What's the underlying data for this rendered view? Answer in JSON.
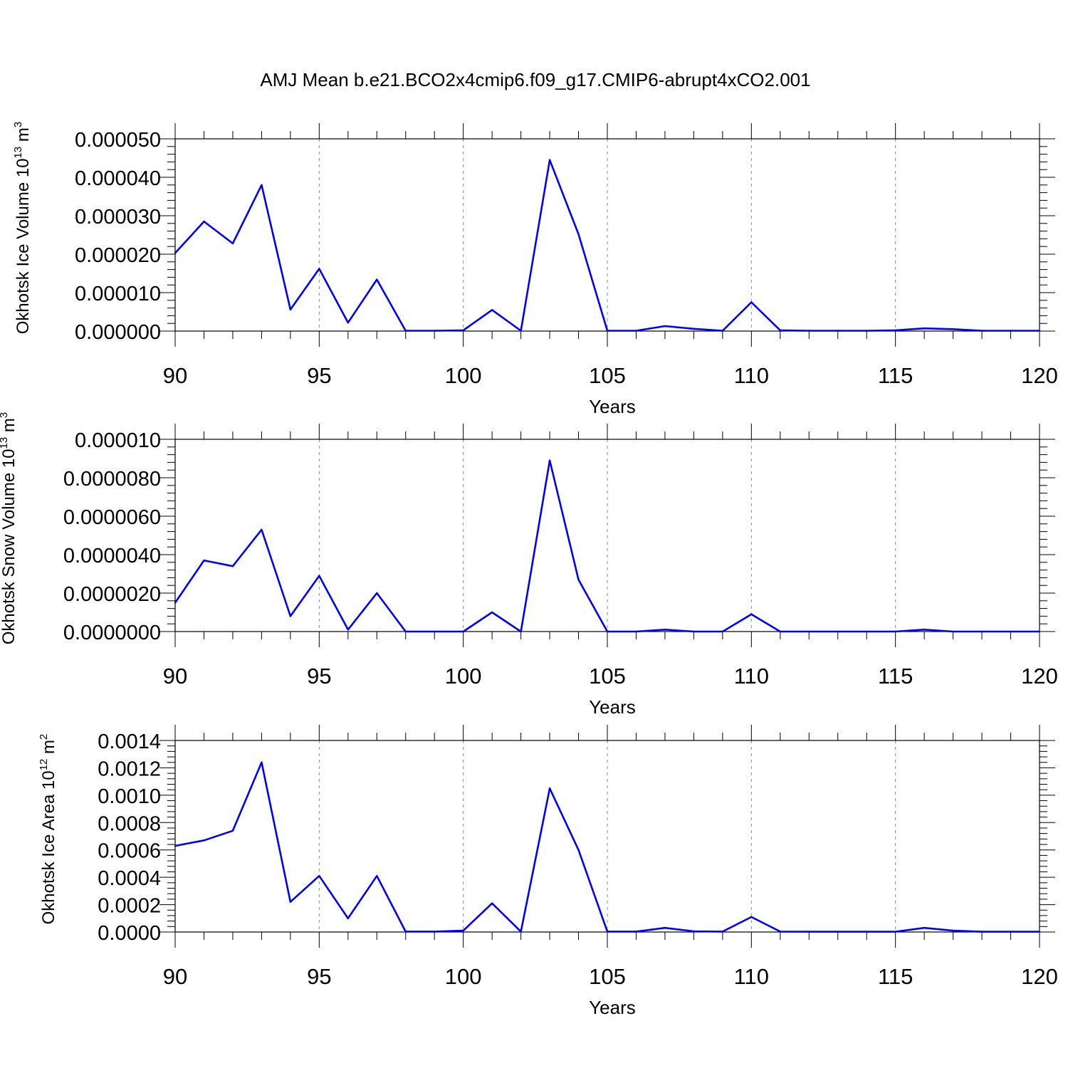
{
  "title": "AMJ Mean b.e21.BCO2x4cmip6.f09_g17.CMIP6-abrupt4xCO2.001",
  "line_color": "#0000ff",
  "chart_data": [
    {
      "type": "line",
      "xlabel": "Years",
      "ylabel": {
        "text": "Okhotsk Ice Volume 10",
        "exponent": "13",
        "unit": " m",
        "unit_exponent": "3"
      },
      "xlim": [
        90,
        120
      ],
      "ylim": [
        0,
        5e-05
      ],
      "x_ticks": [
        "90",
        "95",
        "100",
        "105",
        "110",
        "115",
        "120"
      ],
      "y_ticks": [
        {
          "value": 0.0,
          "label": "0.000000"
        },
        {
          "value": 1e-05,
          "label": "0.000010"
        },
        {
          "value": 2e-05,
          "label": "0.000020"
        },
        {
          "value": 3e-05,
          "label": "0.000030"
        },
        {
          "value": 4e-05,
          "label": "0.000040"
        },
        {
          "value": 5e-05,
          "label": "0.000050"
        }
      ],
      "grid": "dashed vertical at major x ticks",
      "x": [
        90,
        91,
        92,
        93,
        94,
        95,
        96,
        97,
        98,
        99,
        100,
        101,
        102,
        103,
        104,
        105,
        106,
        107,
        108,
        109,
        110,
        111,
        112,
        113,
        114,
        115,
        116,
        117,
        118,
        119,
        120
      ],
      "y": [
        2.03e-05,
        2.85e-05,
        2.28e-05,
        3.8e-05,
        5.6e-06,
        1.62e-05,
        2.2e-06,
        1.34e-05,
        1e-07,
        1e-07,
        2e-07,
        5.5e-06,
        1e-07,
        4.45e-05,
        2.52e-05,
        1e-07,
        1e-07,
        1.3e-06,
        6e-07,
        1e-07,
        7.5e-06,
        2e-07,
        1e-07,
        1e-07,
        1e-07,
        2e-07,
        7e-07,
        5e-07,
        1e-07,
        1e-07,
        1e-07
      ]
    },
    {
      "type": "line",
      "xlabel": "Years",
      "ylabel": {
        "text": "Okhotsk Snow Volume 10",
        "exponent": "13",
        "unit": " m",
        "unit_exponent": "3"
      },
      "xlim": [
        90,
        120
      ],
      "ylim": [
        0,
        1e-05
      ],
      "x_ticks": [
        "90",
        "95",
        "100",
        "105",
        "110",
        "115",
        "120"
      ],
      "y_ticks": [
        {
          "value": 0.0,
          "label": "0.0000000"
        },
        {
          "value": 2e-06,
          "label": "0.0000020"
        },
        {
          "value": 4e-06,
          "label": "0.0000040"
        },
        {
          "value": 6e-06,
          "label": "0.0000060"
        },
        {
          "value": 8e-06,
          "label": "0.0000080"
        },
        {
          "value": 1e-05,
          "label": "0.000010"
        }
      ],
      "grid": "dashed vertical at major x ticks",
      "x": [
        90,
        91,
        92,
        93,
        94,
        95,
        96,
        97,
        98,
        99,
        100,
        101,
        102,
        103,
        104,
        105,
        106,
        107,
        108,
        109,
        110,
        111,
        112,
        113,
        114,
        115,
        116,
        117,
        118,
        119,
        120
      ],
      "y": [
        1.5e-06,
        3.7e-06,
        3.4e-06,
        5.3e-06,
        8e-07,
        2.9e-06,
        1e-07,
        2e-06,
        0.0,
        0.0,
        0.0,
        1e-06,
        0.0,
        8.9e-06,
        2.7e-06,
        0.0,
        0.0,
        1e-07,
        0.0,
        0.0,
        9e-07,
        0.0,
        0.0,
        0.0,
        0.0,
        0.0,
        1e-07,
        0.0,
        0.0,
        0.0,
        0.0
      ]
    },
    {
      "type": "line",
      "xlabel": "Years",
      "ylabel": {
        "text": "Okhotsk Ice Area 10",
        "exponent": "12",
        "unit": " m",
        "unit_exponent": "2"
      },
      "xlim": [
        90,
        120
      ],
      "ylim": [
        0,
        0.0014
      ],
      "x_ticks": [
        "90",
        "95",
        "100",
        "105",
        "110",
        "115",
        "120"
      ],
      "y_ticks": [
        {
          "value": 0.0,
          "label": "0.0000"
        },
        {
          "value": 0.0002,
          "label": "0.0002"
        },
        {
          "value": 0.0004,
          "label": "0.0004"
        },
        {
          "value": 0.0006,
          "label": "0.0006"
        },
        {
          "value": 0.0008,
          "label": "0.0008"
        },
        {
          "value": 0.001,
          "label": "0.0010"
        },
        {
          "value": 0.0012,
          "label": "0.0012"
        },
        {
          "value": 0.0014,
          "label": "0.0014"
        }
      ],
      "grid": "dashed vertical at major x ticks",
      "x": [
        90,
        91,
        92,
        93,
        94,
        95,
        96,
        97,
        98,
        99,
        100,
        101,
        102,
        103,
        104,
        105,
        106,
        107,
        108,
        109,
        110,
        111,
        112,
        113,
        114,
        115,
        116,
        117,
        118,
        119,
        120
      ],
      "y": [
        0.00063,
        0.00067,
        0.00074,
        0.00124,
        0.00022,
        0.00041,
        0.0001,
        0.00041,
        3e-06,
        3e-06,
        1e-05,
        0.00021,
        3e-06,
        0.00105,
        0.0006,
        3e-06,
        3e-06,
        3e-05,
        5e-06,
        3e-06,
        0.00011,
        3e-06,
        2e-06,
        2e-06,
        2e-06,
        2e-06,
        3e-05,
        1e-05,
        2e-06,
        2e-06,
        2e-06
      ]
    }
  ]
}
